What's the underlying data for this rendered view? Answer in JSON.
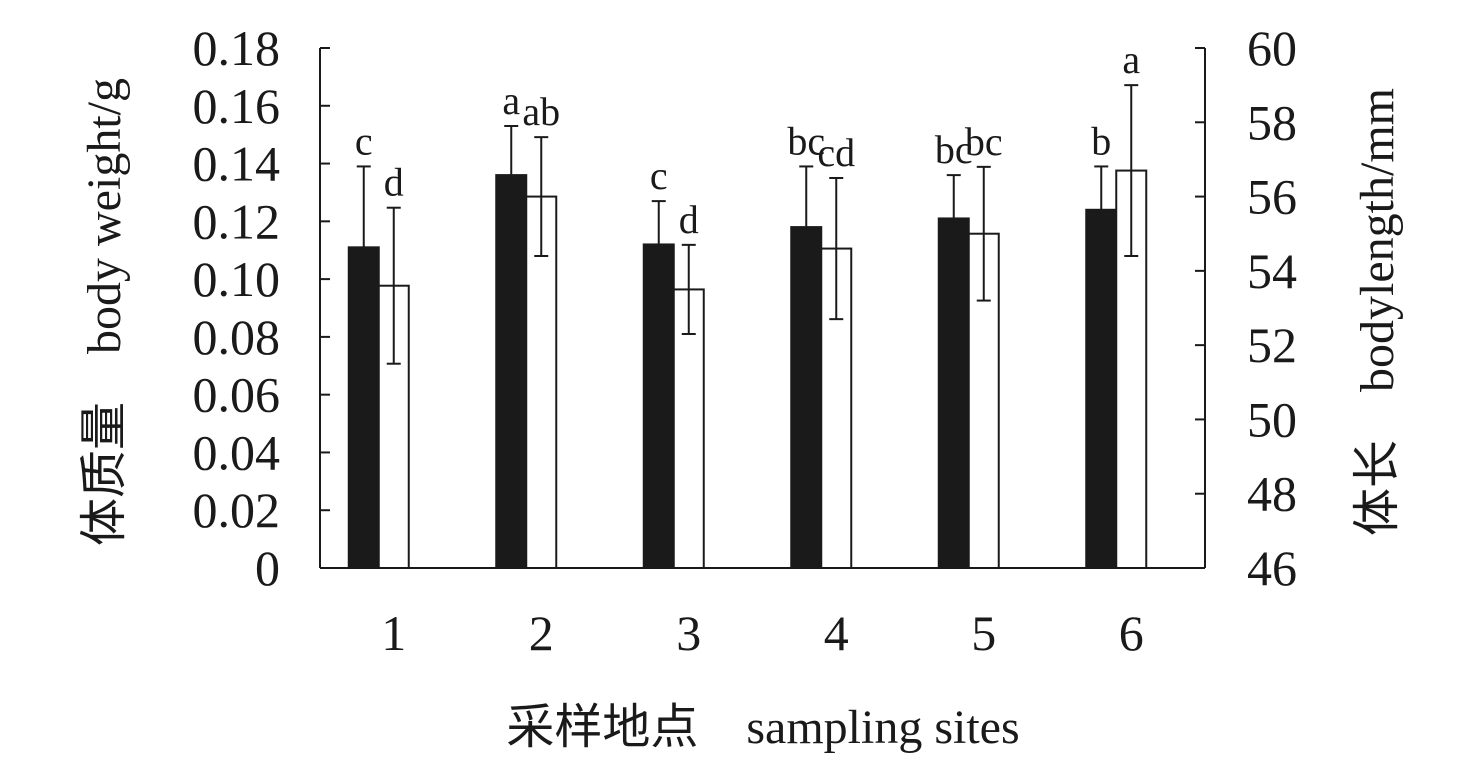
{
  "chart_data": {
    "type": "bar",
    "xlabel": "采样地点　sampling sites",
    "ylabel_left": "体质量　body weight/g",
    "ylabel_right": "体长　bodylength/mm",
    "categories": [
      "1",
      "2",
      "3",
      "4",
      "5",
      "6"
    ],
    "ylim_left": [
      0,
      0.18
    ],
    "ylim_right": [
      46,
      60
    ],
    "yticks_left": [
      "0",
      "0.02",
      "0.04",
      "0.06",
      "0.08",
      "0.10",
      "0.12",
      "0.14",
      "0.16",
      "0.18"
    ],
    "yticks_right": [
      "46",
      "48",
      "50",
      "52",
      "54",
      "56",
      "58",
      "60"
    ],
    "grid": false,
    "series": [
      {
        "axis": "left",
        "color": "#1a1a1a",
        "values": [
          0.111,
          0.136,
          0.112,
          0.118,
          0.121,
          0.124
        ],
        "errors": [
          0.028,
          0.017,
          0.015,
          0.021,
          0.015,
          0.015
        ],
        "letters": [
          "c",
          "a",
          "c",
          "bc",
          "bc",
          "b"
        ]
      },
      {
        "axis": "right",
        "color": "#ffffff",
        "values": [
          53.6,
          56.0,
          53.5,
          54.6,
          55.0,
          56.7
        ],
        "errors": [
          2.1,
          1.6,
          1.2,
          1.9,
          1.8,
          2.3
        ],
        "letters": [
          "d",
          "ab",
          "d",
          "cd",
          "bc",
          "a"
        ]
      }
    ]
  }
}
